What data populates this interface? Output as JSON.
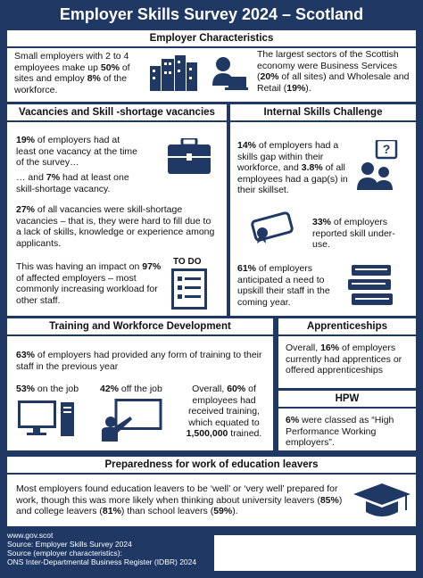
{
  "header": {
    "title": "Employer Skills Survey 2024 – Scotland"
  },
  "employer_characteristics": {
    "title": "Employer Characteristics",
    "left": [
      "Small employers with 2 to 4 employees make up ",
      "50%",
      " of sites and employ ",
      "8%",
      " of the workforce."
    ],
    "right": [
      "The largest sectors of the Scottish economy were Business Services (",
      "20%",
      " of all sites) and Wholesale and Retail (",
      "19%",
      ")."
    ]
  },
  "vacancies": {
    "title": "Vacancies and Skill -shortage vacancies",
    "p1": [
      "19%",
      " of employers had at least one vacancy at the time of the survey…"
    ],
    "p2": [
      "… and ",
      "7%",
      " had at least one skill-shortage vacancy."
    ],
    "p3": [
      "27%",
      " of all vacancies were skill-shortage vacancies – that is, they were hard to fill due to a lack of skills, knowledge or experience among applicants."
    ],
    "p4": [
      "This was having an impact on ",
      "97%",
      " of affected employers – most commonly increasing workload for other staff."
    ],
    "icon_label": "TO DO"
  },
  "internal_skills": {
    "title": "Internal Skills Challenge",
    "p1": [
      "14%",
      " of employers had a skills gap within their workforce, and ",
      "3.8%",
      " of all employees had a gap(s) in their skillset."
    ],
    "p2": [
      "33%",
      " of employers reported skill under-use."
    ],
    "p3": [
      "61%",
      " of employers anticipated a need to upskill their staff in the coming year."
    ]
  },
  "training": {
    "title": "Training and Workforce Development",
    "p1": [
      "63%",
      " of employers had provided any form of training to their staff in the previous year"
    ],
    "on_job": [
      "53%",
      " on the job"
    ],
    "off_job": [
      "42%",
      " off the job"
    ],
    "overall": [
      "Overall, ",
      "60%",
      " of employees had received training, which equated to ",
      "1,500,000",
      " trained."
    ]
  },
  "apprenticeships": {
    "title": "Apprenticeships",
    "text": [
      "Overall, ",
      "16%",
      " of employers currently had apprentices or offered apprenticeships"
    ]
  },
  "hpw": {
    "title": "HPW",
    "text": [
      "6%",
      " were classed as “High Performance Working employers”."
    ]
  },
  "preparedness": {
    "title": "Preparedness for work of education leavers",
    "text": [
      "Most employers found education leavers to be ‘well’ or ‘very well’ prepared for work, though this was more likely when thinking about university leavers (",
      "85%",
      ") and college leavers (",
      "81%",
      ") than school leavers (",
      "59%",
      ")."
    ]
  },
  "footer": {
    "lines": [
      "www.gov.scot",
      "Source: Employer Skills Survey 2024",
      "Source (employer characteristics):",
      "ONS Inter-Departmental Business Register (IDBR) 2024"
    ]
  }
}
